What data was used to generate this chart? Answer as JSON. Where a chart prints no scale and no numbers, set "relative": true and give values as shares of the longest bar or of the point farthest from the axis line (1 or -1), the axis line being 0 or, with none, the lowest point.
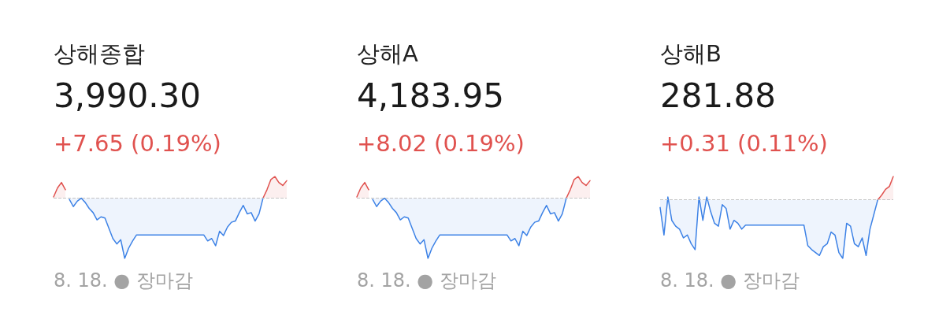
{
  "chart_data": [
    {
      "type": "area",
      "relative": true,
      "title": "상해종합",
      "subtitle": "3,990.30",
      "annotations": [
        "+7.65 (0.19%)",
        "8. 18. ● 장마감"
      ],
      "ref_lines": [
        {
          "axis": "y",
          "value": 0,
          "color": "#c4c4c4",
          "line_style": "dashed"
        }
      ],
      "categories": [
        null,
        null,
        null,
        null,
        null,
        null,
        null,
        null,
        null,
        null,
        null,
        null,
        null,
        null,
        null,
        null,
        null,
        null,
        null,
        null,
        null,
        null,
        null,
        null,
        null,
        null,
        null,
        null,
        null,
        null,
        null,
        null,
        null,
        null,
        null,
        null,
        null,
        null,
        null,
        null,
        null,
        null,
        null,
        null,
        null,
        null,
        null,
        null,
        null,
        null,
        null,
        null,
        null,
        null,
        null,
        null,
        null,
        null,
        null,
        null
      ],
      "series": [
        {
          "color": "#e0524f",
          "values": [
            0.02,
            0.17,
            0.26,
            0.14,
            null,
            null,
            null,
            null,
            null,
            null,
            null,
            null,
            null,
            null,
            null,
            null,
            null,
            null,
            null,
            null,
            null,
            null,
            null,
            null,
            null,
            null,
            null,
            null,
            null,
            null,
            null,
            null,
            null,
            null,
            null,
            null,
            null,
            null,
            null,
            null,
            null,
            null,
            null,
            null,
            null,
            null,
            null,
            null,
            null,
            null,
            null,
            null,
            null,
            0,
            0.14,
            0.31,
            0.36,
            0.26,
            0.21,
            0.29
          ]
        },
        {
          "color": "#3d82e6",
          "values": [
            null,
            null,
            null,
            null,
            -0.02,
            -0.14,
            -0.05,
            0,
            -0.07,
            -0.17,
            -0.24,
            -0.36,
            -0.31,
            -0.33,
            -0.5,
            -0.67,
            -0.76,
            -0.69,
            -1,
            -0.83,
            -0.71,
            -0.61,
            -0.61,
            -0.61,
            -0.61,
            -0.61,
            -0.61,
            -0.61,
            -0.61,
            -0.61,
            -0.61,
            -0.61,
            -0.61,
            -0.61,
            -0.61,
            -0.61,
            -0.61,
            -0.61,
            -0.61,
            -0.71,
            -0.67,
            -0.79,
            -0.55,
            -0.62,
            -0.48,
            -0.4,
            -0.38,
            -0.24,
            -0.12,
            -0.26,
            -0.24,
            -0.38,
            -0.26,
            0,
            null,
            null,
            null,
            null,
            null,
            null
          ]
        }
      ]
    },
    {
      "type": "area",
      "relative": true,
      "title": "상해A",
      "subtitle": "4,183.95",
      "annotations": [
        "+8.02 (0.19%)",
        "8. 18. ● 장마감"
      ],
      "ref_lines": [
        {
          "axis": "y",
          "value": 0,
          "color": "#c4c4c4",
          "line_style": "dashed"
        }
      ],
      "categories": [
        null,
        null,
        null,
        null,
        null,
        null,
        null,
        null,
        null,
        null,
        null,
        null,
        null,
        null,
        null,
        null,
        null,
        null,
        null,
        null,
        null,
        null,
        null,
        null,
        null,
        null,
        null,
        null,
        null,
        null,
        null,
        null,
        null,
        null,
        null,
        null,
        null,
        null,
        null,
        null,
        null,
        null,
        null,
        null,
        null,
        null,
        null,
        null,
        null,
        null,
        null,
        null,
        null,
        null,
        null,
        null,
        null,
        null,
        null,
        null
      ],
      "series": [
        {
          "color": "#e0524f",
          "values": [
            0.02,
            0.17,
            0.26,
            0.14,
            null,
            null,
            null,
            null,
            null,
            null,
            null,
            null,
            null,
            null,
            null,
            null,
            null,
            null,
            null,
            null,
            null,
            null,
            null,
            null,
            null,
            null,
            null,
            null,
            null,
            null,
            null,
            null,
            null,
            null,
            null,
            null,
            null,
            null,
            null,
            null,
            null,
            null,
            null,
            null,
            null,
            null,
            null,
            null,
            null,
            null,
            null,
            null,
            null,
            0,
            0.14,
            0.31,
            0.36,
            0.26,
            0.21,
            0.29
          ]
        },
        {
          "color": "#3d82e6",
          "values": [
            null,
            null,
            null,
            null,
            -0.02,
            -0.14,
            -0.05,
            0,
            -0.07,
            -0.17,
            -0.24,
            -0.36,
            -0.31,
            -0.33,
            -0.5,
            -0.67,
            -0.76,
            -0.69,
            -1,
            -0.83,
            -0.71,
            -0.61,
            -0.61,
            -0.61,
            -0.61,
            -0.61,
            -0.61,
            -0.61,
            -0.61,
            -0.61,
            -0.61,
            -0.61,
            -0.61,
            -0.61,
            -0.61,
            -0.61,
            -0.61,
            -0.61,
            -0.61,
            -0.71,
            -0.67,
            -0.79,
            -0.55,
            -0.62,
            -0.48,
            -0.4,
            -0.38,
            -0.24,
            -0.12,
            -0.26,
            -0.24,
            -0.38,
            -0.26,
            0,
            null,
            null,
            null,
            null,
            null,
            null
          ]
        }
      ]
    },
    {
      "type": "area",
      "relative": true,
      "title": "상해B",
      "subtitle": "281.88",
      "annotations": [
        "+0.31 (0.11%)",
        "8. 18. ● 장마감"
      ],
      "ref_lines": [
        {
          "axis": "y",
          "value": 0,
          "color": "#c4c4c4",
          "line_style": "dashed"
        }
      ],
      "categories": [
        null,
        null,
        null,
        null,
        null,
        null,
        null,
        null,
        null,
        null,
        null,
        null,
        null,
        null,
        null,
        null,
        null,
        null,
        null,
        null,
        null,
        null,
        null,
        null,
        null,
        null,
        null,
        null,
        null,
        null,
        null,
        null,
        null,
        null,
        null,
        null,
        null,
        null,
        null,
        null,
        null,
        null,
        null,
        null,
        null,
        null,
        null,
        null,
        null,
        null,
        null,
        null,
        null,
        null,
        null,
        null,
        null,
        null,
        null,
        null,
        null
      ],
      "series": [
        {
          "color": "#e0524f",
          "values": [
            null,
            null,
            null,
            null,
            null,
            null,
            null,
            null,
            null,
            null,
            null,
            null,
            null,
            null,
            null,
            null,
            null,
            null,
            null,
            null,
            null,
            null,
            null,
            null,
            null,
            null,
            null,
            null,
            null,
            null,
            null,
            null,
            null,
            null,
            null,
            null,
            null,
            null,
            null,
            null,
            null,
            null,
            null,
            null,
            null,
            null,
            null,
            null,
            null,
            null,
            null,
            null,
            null,
            null,
            null,
            null,
            0,
            0.08,
            0.18,
            0.23,
            0.4
          ]
        },
        {
          "color": "#3d82e6",
          "values": [
            -0.13,
            -0.6,
            0.05,
            -0.35,
            -0.45,
            -0.5,
            -0.65,
            -0.6,
            -0.75,
            -0.85,
            0.05,
            -0.35,
            0.05,
            -0.2,
            -0.4,
            -0.45,
            -0.08,
            -0.15,
            -0.5,
            -0.35,
            -0.4,
            -0.5,
            -0.43,
            -0.43,
            -0.43,
            -0.43,
            -0.43,
            -0.43,
            -0.43,
            -0.43,
            -0.43,
            -0.43,
            -0.43,
            -0.43,
            -0.43,
            -0.43,
            -0.43,
            -0.43,
            -0.78,
            -0.85,
            -0.9,
            -0.95,
            -0.8,
            -0.75,
            -0.55,
            -0.6,
            -0.9,
            -1,
            -0.4,
            -0.45,
            -0.75,
            -0.8,
            -0.65,
            -0.95,
            -0.5,
            -0.25,
            0,
            null,
            null,
            null,
            null
          ]
        }
      ]
    }
  ]
}
